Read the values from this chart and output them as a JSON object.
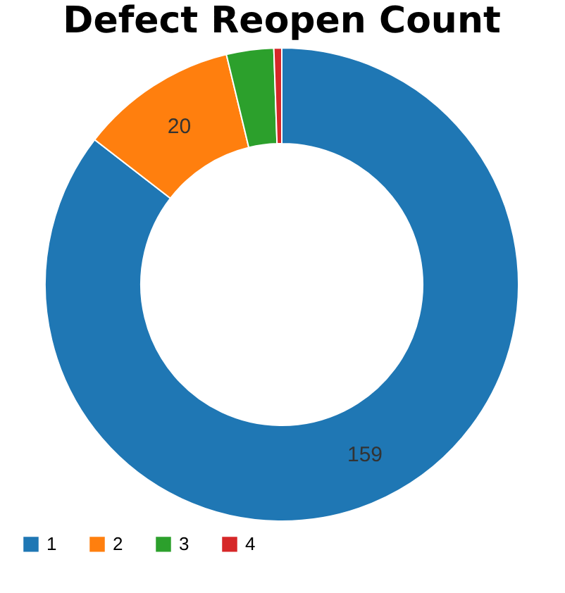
{
  "chart_data": {
    "type": "donut",
    "title": "Defect Reopen Count",
    "categories": [
      "1",
      "2",
      "3",
      "4"
    ],
    "values": [
      159,
      20,
      6,
      1
    ],
    "colors": [
      "#1f77b4",
      "#ff7f0e",
      "#2ca02c",
      "#d62728"
    ],
    "value_labels": [
      "159",
      "20",
      null,
      null
    ],
    "legend": "bottom"
  }
}
